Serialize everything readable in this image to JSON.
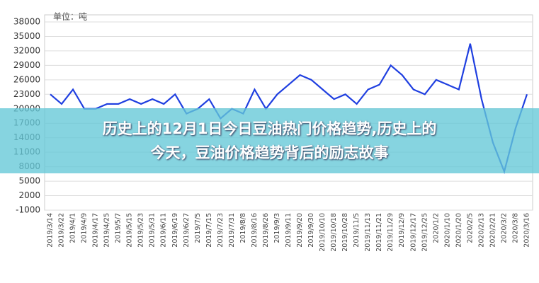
{
  "chart_data": {
    "type": "line",
    "unit_label": "单位：吨",
    "categories": [
      "2019/3/14",
      "2019/3/22",
      "2019/4/1",
      "2019/4/9",
      "2019/4/17",
      "2019/4/25",
      "2019/5/7",
      "2019/5/15",
      "2019/5/23",
      "2019/5/31",
      "2019/6/11",
      "2019/6/19",
      "2019/6/27",
      "2019/7/5",
      "2019/7/15",
      "2019/7/23",
      "2019/7/31",
      "2019/8/8",
      "2019/8/16",
      "2019/8/26",
      "2019/9/3",
      "2019/9/11",
      "2019/9/20",
      "2019/9/30",
      "2019/10/10",
      "2019/10/18",
      "2019/10/28",
      "2019/11/5",
      "2019/11/13",
      "2019/11/21",
      "2019/11/29",
      "2019/12/9",
      "2019/12/17",
      "2019/12/25",
      "2020/1/2",
      "2020/1/10",
      "2020/1/20",
      "2020/2/5",
      "2020/2/13",
      "2020/2/21",
      "2020/3/2",
      "2020/3/8",
      "2020/3/16"
    ],
    "series": [
      {
        "name": "豆油",
        "color": "#1f3fe0",
        "values": [
          23000,
          21000,
          24000,
          20000,
          20000,
          21000,
          21000,
          22000,
          21000,
          22000,
          21000,
          23000,
          19000,
          20000,
          22000,
          18000,
          20000,
          19000,
          24000,
          20000,
          23000,
          25000,
          27000,
          26000,
          24000,
          22000,
          23000,
          21000,
          24000,
          25000,
          29000,
          27000,
          24000,
          23000,
          26000,
          25000,
          24000,
          33500,
          22000,
          13000,
          7000,
          16000,
          23000
        ]
      }
    ],
    "ylim": [
      -1000,
      38000
    ],
    "yticks": [
      38000,
      35000,
      32000,
      29000,
      26000,
      23000,
      20000,
      17000,
      14000,
      11000,
      8000,
      5000,
      2000,
      -1000
    ],
    "grid": true
  },
  "banner": {
    "lines": [
      "历史上的12月1日今日豆油热门价格趋势,历史上的",
      "今天，豆油价格趋势背后的励志故事"
    ]
  }
}
